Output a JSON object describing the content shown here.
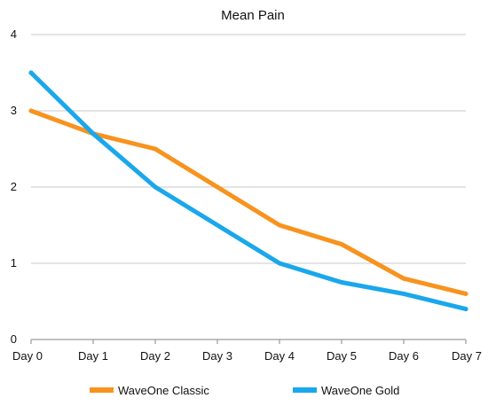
{
  "chart_data": {
    "type": "line",
    "title": "Mean Pain",
    "xlabel": "",
    "ylabel": "",
    "categories": [
      "Day 0",
      "Day 1",
      "Day 2",
      "Day 3",
      "Day 4",
      "Day 5",
      "Day 6",
      "Day 7"
    ],
    "ylim": [
      0,
      4
    ],
    "yticks": [
      "0",
      "1",
      "2",
      "3",
      "4"
    ],
    "grid": true,
    "legend_position": "bottom",
    "series": [
      {
        "name": "WaveOne Classic",
        "color": "#f7931e",
        "values": [
          3.0,
          2.7,
          2.5,
          2.0,
          1.5,
          1.25,
          0.8,
          0.6
        ]
      },
      {
        "name": "WaveOne Gold",
        "color": "#1aa7ec",
        "values": [
          3.5,
          2.7,
          2.0,
          1.5,
          1.0,
          0.75,
          0.6,
          0.4
        ]
      }
    ]
  }
}
